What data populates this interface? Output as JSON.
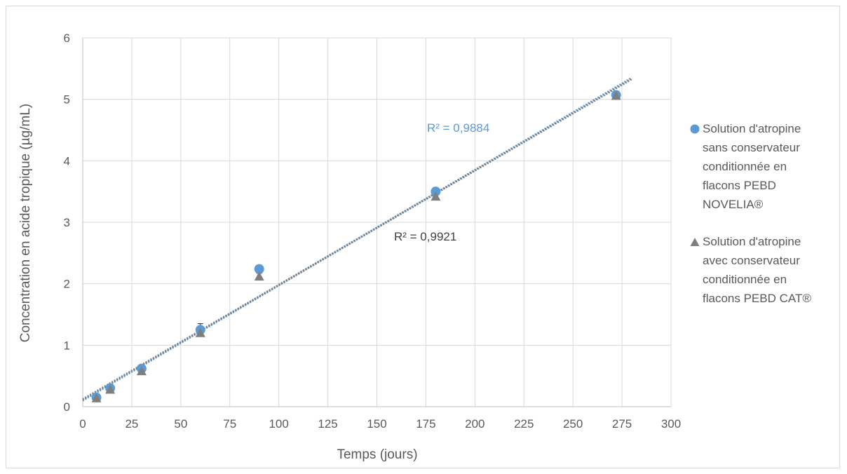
{
  "chart_data": {
    "type": "scatter",
    "xlabel": "Temps (jours)",
    "ylabel": "Concentration en acide tropique (µg/mL)",
    "xlim": [
      0,
      300
    ],
    "ylim": [
      0,
      6
    ],
    "x_ticks": [
      "0",
      "25",
      "50",
      "75",
      "100",
      "125",
      "150",
      "175",
      "200",
      "225",
      "250",
      "275",
      "300"
    ],
    "y_ticks": [
      "0",
      "1",
      "2",
      "3",
      "4",
      "5",
      "6"
    ],
    "grid": true,
    "legend_position": "right",
    "series": [
      {
        "name": "Solution d'atropine sans conservateur conditionnée en flacons PEBD NOVELIA®",
        "marker": "circle",
        "color": "#5b9bd5",
        "x": [
          7,
          14,
          30,
          60,
          90,
          180,
          272
        ],
        "y": [
          0.15,
          0.3,
          0.62,
          1.25,
          2.24,
          3.5,
          5.07
        ],
        "error_y": [
          0.05,
          0.05,
          0.05,
          0.1,
          0.05,
          0.05,
          0.05
        ],
        "trendline": {
          "type": "linear",
          "x": [
            0,
            280
          ],
          "y": [
            0.1,
            5.35
          ],
          "color": "#5b9bd5"
        },
        "r2_label": "R² = 0,9884"
      },
      {
        "name": "Solution d'atropine avec conservateur conditionnée en flacons PEBD CAT®",
        "marker": "triangle",
        "color": "#7f7f7f",
        "x": [
          7,
          14,
          30,
          60,
          90,
          180,
          272
        ],
        "y": [
          0.14,
          0.28,
          0.58,
          1.2,
          2.12,
          3.42,
          5.06
        ],
        "error_y": [
          0.03,
          0.03,
          0.03,
          0.05,
          0.05,
          0.04,
          0.04
        ],
        "trendline": {
          "type": "linear",
          "x": [
            0,
            280
          ],
          "y": [
            0.12,
            5.33
          ],
          "color": "#7f7f7f"
        },
        "r2_label": "R² = 0,9921"
      }
    ],
    "legend_lines": [
      [
        "Solution d'atropine",
        "sans conservateur",
        "conditionnée en",
        "flacons PEBD",
        "NOVELIA®"
      ],
      [
        "Solution d'atropine",
        "avec conservateur",
        "conditionnée en",
        "flacons PEBD CAT®"
      ]
    ]
  }
}
